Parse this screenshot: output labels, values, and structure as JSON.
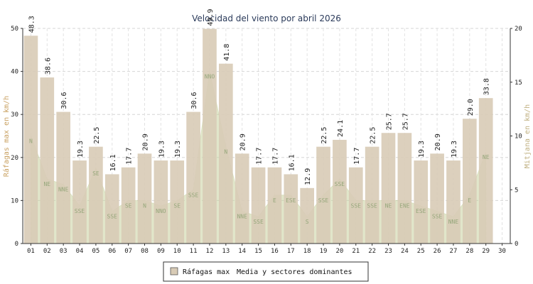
{
  "chart_data": {
    "type": "bar",
    "title": "Velocidad del viento por abril 2026",
    "ylabel_left": "Ráfagas max en km/h",
    "ylabel_right": "Mitjana en km/h",
    "ylim_left": [
      0,
      50
    ],
    "ylim_right": [
      0,
      20
    ],
    "yticks_left": [
      0,
      10,
      20,
      30,
      40,
      50
    ],
    "yticks_right": [
      0,
      5,
      10,
      15,
      20
    ],
    "grid": true,
    "legend_position": "bottom",
    "categories": [
      "01",
      "02",
      "03",
      "04",
      "05",
      "06",
      "07",
      "08",
      "09",
      "10",
      "11",
      "12",
      "13",
      "14",
      "15",
      "16",
      "17",
      "18",
      "19",
      "20",
      "21",
      "22",
      "23",
      "24",
      "25",
      "26",
      "27",
      "28",
      "29",
      "30"
    ],
    "series": [
      {
        "name": "Ráfagas max",
        "axis": "left",
        "type": "bar",
        "color": "#d8cbb6",
        "values": [
          48.3,
          38.6,
          30.6,
          19.3,
          22.5,
          16.1,
          17.7,
          20.9,
          19.3,
          19.3,
          30.6,
          49.9,
          41.8,
          20.9,
          17.7,
          17.7,
          16.1,
          12.9,
          22.5,
          24.1,
          17.7,
          22.5,
          25.7,
          25.7,
          19.3,
          20.9,
          19.3,
          29.0,
          33.8,
          null
        ],
        "labels": [
          "48.3",
          "38.6",
          "30.6",
          "19.3",
          "22.5",
          "16.1",
          "17.7",
          "20.9",
          "19.3",
          "19.3",
          "30.6",
          "49.9",
          "41.8",
          "20.9",
          "17.7",
          "17.7",
          "16.1",
          "12.9",
          "22.5",
          "24.1",
          "17.7",
          "22.5",
          "25.7",
          "25.7",
          "19.3",
          "20.9",
          "19.3",
          "29.0",
          "33.8",
          ""
        ]
      },
      {
        "name": "Media y sectores dominantes",
        "axis": "right",
        "type": "area",
        "color": "#c9d3a0",
        "values": [
          10,
          6,
          5.5,
          3.5,
          7,
          3,
          4,
          4,
          3.5,
          4,
          5,
          16,
          9,
          3,
          2.5,
          4.5,
          4.5,
          2.5,
          4.5,
          6,
          4,
          4,
          4,
          4,
          3.5,
          3,
          2.5,
          4.5,
          8.5,
          null
        ],
        "sectors": [
          "N",
          "NE",
          "NNE",
          "SSE",
          "SE",
          "SSE",
          "SE",
          "N",
          "NNO",
          "SE",
          "SSE",
          "NNO",
          "N",
          "NNE",
          "SSE",
          "E",
          "ESE",
          "S",
          "SSE",
          "SSE",
          "SSE",
          "SSE",
          "NE",
          "ENE",
          "ESE",
          "SSE",
          "NNE",
          "E",
          "NE",
          ""
        ]
      }
    ]
  }
}
